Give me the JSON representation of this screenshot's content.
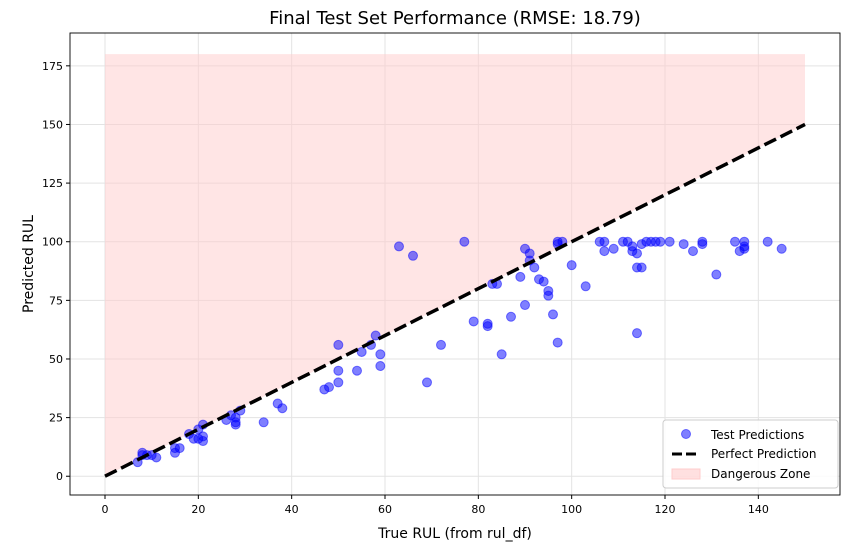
{
  "chart_data": {
    "type": "scatter",
    "title": "Final Test Set Performance (RMSE: 18.79)",
    "xlabel": "True RUL (from rul_df)",
    "ylabel": "Predicted RUL",
    "xlim": [
      -7.5,
      157.5
    ],
    "ylim": [
      -8,
      189
    ],
    "xticks": [
      0,
      20,
      40,
      60,
      80,
      100,
      120,
      140
    ],
    "yticks": [
      0,
      25,
      50,
      75,
      100,
      125,
      150,
      175
    ],
    "grid": true,
    "legend_position": "lower-right",
    "series": [
      {
        "name": "Test Predictions",
        "kind": "scatter",
        "color": "#0000ff",
        "points": [
          [
            7,
            6
          ],
          [
            8,
            9
          ],
          [
            8,
            10
          ],
          [
            9,
            9
          ],
          [
            10,
            9
          ],
          [
            11,
            8
          ],
          [
            15,
            10
          ],
          [
            15,
            12
          ],
          [
            16,
            12
          ],
          [
            18,
            18
          ],
          [
            19,
            16
          ],
          [
            20,
            16
          ],
          [
            20,
            20
          ],
          [
            21,
            17
          ],
          [
            21,
            15
          ],
          [
            21,
            22
          ],
          [
            26,
            24
          ],
          [
            27,
            26
          ],
          [
            28,
            22
          ],
          [
            28,
            23
          ],
          [
            28,
            25
          ],
          [
            29,
            28
          ],
          [
            34,
            23
          ],
          [
            37,
            31
          ],
          [
            38,
            29
          ],
          [
            47,
            37
          ],
          [
            48,
            38
          ],
          [
            50,
            40
          ],
          [
            50,
            45
          ],
          [
            50,
            56
          ],
          [
            54,
            45
          ],
          [
            55,
            53
          ],
          [
            57,
            56
          ],
          [
            58,
            60
          ],
          [
            59,
            47
          ],
          [
            59,
            52
          ],
          [
            63,
            98
          ],
          [
            66,
            94
          ],
          [
            69,
            40
          ],
          [
            72,
            56
          ],
          [
            77,
            100
          ],
          [
            79,
            66
          ],
          [
            82,
            64
          ],
          [
            82,
            65
          ],
          [
            83,
            82
          ],
          [
            84,
            82
          ],
          [
            85,
            52
          ],
          [
            87,
            68
          ],
          [
            89,
            85
          ],
          [
            90,
            97
          ],
          [
            90,
            73
          ],
          [
            91,
            95
          ],
          [
            91,
            92
          ],
          [
            92,
            89
          ],
          [
            93,
            84
          ],
          [
            94,
            83
          ],
          [
            95,
            79
          ],
          [
            95,
            77
          ],
          [
            96,
            69
          ],
          [
            97,
            57
          ],
          [
            97,
            100
          ],
          [
            97,
            99
          ],
          [
            98,
            100
          ],
          [
            100,
            90
          ],
          [
            103,
            81
          ],
          [
            106,
            100
          ],
          [
            107,
            100
          ],
          [
            107,
            96
          ],
          [
            109,
            97
          ],
          [
            111,
            100
          ],
          [
            112,
            100
          ],
          [
            113,
            98
          ],
          [
            113,
            96
          ],
          [
            114,
            95
          ],
          [
            114,
            89
          ],
          [
            114,
            61
          ],
          [
            115,
            89
          ],
          [
            115,
            99
          ],
          [
            116,
            100
          ],
          [
            117,
            100
          ],
          [
            118,
            100
          ],
          [
            119,
            100
          ],
          [
            121,
            100
          ],
          [
            124,
            99
          ],
          [
            126,
            96
          ],
          [
            128,
            99
          ],
          [
            128,
            100
          ],
          [
            131,
            86
          ],
          [
            135,
            100
          ],
          [
            136,
            96
          ],
          [
            137,
            97
          ],
          [
            137,
            100
          ],
          [
            137,
            98
          ],
          [
            142,
            100
          ],
          [
            145,
            97
          ]
        ]
      },
      {
        "name": "Perfect Prediction",
        "kind": "line",
        "color": "#000000",
        "points": [
          [
            0,
            0
          ],
          [
            150,
            150
          ]
        ]
      },
      {
        "name": "Dangerous Zone",
        "kind": "area",
        "color": "#ffcccc",
        "x": [
          0,
          150
        ],
        "lower": [
          0,
          150
        ],
        "upper": [
          180,
          180
        ]
      }
    ]
  }
}
